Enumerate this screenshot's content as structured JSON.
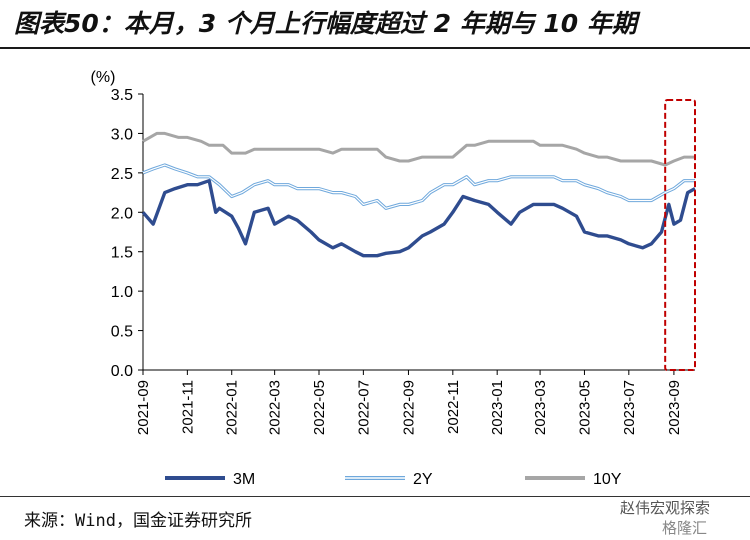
{
  "header": {
    "title": "图表50：本月，3 个月上行幅度超过 2 年期与 10 年期"
  },
  "footer": {
    "source": "来源：Wind，国金证券研究所",
    "watermark_name": "赵伟宏观探索",
    "watermark_logo": "格隆汇"
  },
  "chart_data": {
    "type": "line",
    "ylabel": "(%)",
    "ylim": [
      0.0,
      3.5
    ],
    "yticks": [
      "0.0",
      "0.5",
      "1.0",
      "1.5",
      "2.0",
      "2.5",
      "3.0",
      "3.5"
    ],
    "xlim": [
      "2021-09-01",
      "2023-09-30"
    ],
    "xticks": [
      "2021-09",
      "2021-11",
      "2022-01",
      "2022-03",
      "2022-05",
      "2022-07",
      "2022-09",
      "2022-11",
      "2023-01",
      "2023-03",
      "2023-05",
      "2023-07",
      "2023-09"
    ],
    "grid": false,
    "legend_position": "bottom",
    "highlight": {
      "x_from": "2023-08-20",
      "x_to": "2023-09-30",
      "color": "#C00000",
      "style": "dashed"
    },
    "series": [
      {
        "name": "3M",
        "color": "#2F4C8F",
        "style": "solid",
        "x": [
          "2021-09-01",
          "2021-09-15",
          "2021-10-01",
          "2021-10-15",
          "2021-11-01",
          "2021-11-15",
          "2021-12-01",
          "2021-12-10",
          "2021-12-15",
          "2022-01-01",
          "2022-01-10",
          "2022-01-20",
          "2022-02-01",
          "2022-02-20",
          "2022-03-01",
          "2022-03-20",
          "2022-04-01",
          "2022-04-20",
          "2022-05-01",
          "2022-05-20",
          "2022-06-01",
          "2022-06-20",
          "2022-07-01",
          "2022-07-20",
          "2022-08-01",
          "2022-08-20",
          "2022-09-01",
          "2022-09-20",
          "2022-10-01",
          "2022-10-20",
          "2022-11-01",
          "2022-11-15",
          "2022-12-01",
          "2022-12-20",
          "2023-01-01",
          "2023-01-20",
          "2023-02-01",
          "2023-02-20",
          "2023-03-01",
          "2023-03-20",
          "2023-04-01",
          "2023-04-20",
          "2023-05-01",
          "2023-05-20",
          "2023-06-01",
          "2023-06-20",
          "2023-07-01",
          "2023-07-20",
          "2023-08-01",
          "2023-08-15",
          "2023-08-25",
          "2023-09-01",
          "2023-09-10",
          "2023-09-20",
          "2023-09-30"
        ],
        "y": [
          2.0,
          1.85,
          2.25,
          2.3,
          2.35,
          2.35,
          2.4,
          2.0,
          2.05,
          1.95,
          1.8,
          1.6,
          2.0,
          2.05,
          1.85,
          1.95,
          1.9,
          1.75,
          1.65,
          1.55,
          1.6,
          1.5,
          1.45,
          1.45,
          1.48,
          1.5,
          1.55,
          1.7,
          1.75,
          1.85,
          2.0,
          2.2,
          2.15,
          2.1,
          2.0,
          1.85,
          2.0,
          2.1,
          2.1,
          2.1,
          2.05,
          1.95,
          1.75,
          1.7,
          1.7,
          1.65,
          1.6,
          1.55,
          1.6,
          1.75,
          2.1,
          1.85,
          1.9,
          2.25,
          2.3
        ]
      },
      {
        "name": "2Y",
        "color": "#6FA8DC",
        "style": "double",
        "x": [
          "2021-09-01",
          "2021-09-15",
          "2021-10-01",
          "2021-10-15",
          "2021-11-01",
          "2021-11-15",
          "2021-12-01",
          "2021-12-15",
          "2022-01-01",
          "2022-01-15",
          "2022-02-01",
          "2022-02-20",
          "2022-03-01",
          "2022-03-20",
          "2022-04-01",
          "2022-04-20",
          "2022-05-01",
          "2022-05-20",
          "2022-06-01",
          "2022-06-20",
          "2022-07-01",
          "2022-07-20",
          "2022-08-01",
          "2022-08-20",
          "2022-09-01",
          "2022-09-20",
          "2022-10-01",
          "2022-10-20",
          "2022-11-01",
          "2022-11-20",
          "2022-12-01",
          "2022-12-20",
          "2023-01-01",
          "2023-01-20",
          "2023-02-01",
          "2023-02-20",
          "2023-03-01",
          "2023-03-20",
          "2023-04-01",
          "2023-04-20",
          "2023-05-01",
          "2023-05-20",
          "2023-06-01",
          "2023-06-20",
          "2023-07-01",
          "2023-07-20",
          "2023-08-01",
          "2023-08-20",
          "2023-09-01",
          "2023-09-15",
          "2023-09-30"
        ],
        "y": [
          2.5,
          2.55,
          2.6,
          2.55,
          2.5,
          2.45,
          2.45,
          2.35,
          2.2,
          2.25,
          2.35,
          2.4,
          2.35,
          2.35,
          2.3,
          2.3,
          2.3,
          2.25,
          2.25,
          2.2,
          2.1,
          2.15,
          2.05,
          2.1,
          2.1,
          2.15,
          2.25,
          2.35,
          2.35,
          2.45,
          2.35,
          2.4,
          2.4,
          2.45,
          2.45,
          2.45,
          2.45,
          2.45,
          2.4,
          2.4,
          2.35,
          2.3,
          2.25,
          2.2,
          2.15,
          2.15,
          2.15,
          2.25,
          2.3,
          2.4,
          2.4
        ]
      },
      {
        "name": "10Y",
        "color": "#A6A6A6",
        "style": "solid",
        "x": [
          "2021-09-01",
          "2021-09-20",
          "2021-10-01",
          "2021-10-20",
          "2021-11-01",
          "2021-11-20",
          "2021-12-01",
          "2021-12-20",
          "2022-01-01",
          "2022-01-20",
          "2022-02-01",
          "2022-02-20",
          "2022-03-01",
          "2022-03-20",
          "2022-04-01",
          "2022-04-20",
          "2022-05-01",
          "2022-05-20",
          "2022-06-01",
          "2022-06-20",
          "2022-07-01",
          "2022-07-20",
          "2022-08-01",
          "2022-08-20",
          "2022-09-01",
          "2022-09-20",
          "2022-10-01",
          "2022-10-20",
          "2022-11-01",
          "2022-11-20",
          "2022-12-01",
          "2022-12-20",
          "2023-01-01",
          "2023-01-20",
          "2023-02-01",
          "2023-02-20",
          "2023-03-01",
          "2023-03-20",
          "2023-04-01",
          "2023-04-20",
          "2023-05-01",
          "2023-05-20",
          "2023-06-01",
          "2023-06-20",
          "2023-07-01",
          "2023-07-20",
          "2023-08-01",
          "2023-08-20",
          "2023-09-01",
          "2023-09-15",
          "2023-09-30"
        ],
        "y": [
          2.9,
          3.0,
          3.0,
          2.95,
          2.95,
          2.9,
          2.85,
          2.85,
          2.75,
          2.75,
          2.8,
          2.8,
          2.8,
          2.8,
          2.8,
          2.8,
          2.8,
          2.75,
          2.8,
          2.8,
          2.8,
          2.8,
          2.7,
          2.65,
          2.65,
          2.7,
          2.7,
          2.7,
          2.7,
          2.85,
          2.85,
          2.9,
          2.9,
          2.9,
          2.9,
          2.9,
          2.85,
          2.85,
          2.85,
          2.8,
          2.75,
          2.7,
          2.7,
          2.65,
          2.65,
          2.65,
          2.65,
          2.6,
          2.65,
          2.7,
          2.7
        ]
      }
    ]
  }
}
